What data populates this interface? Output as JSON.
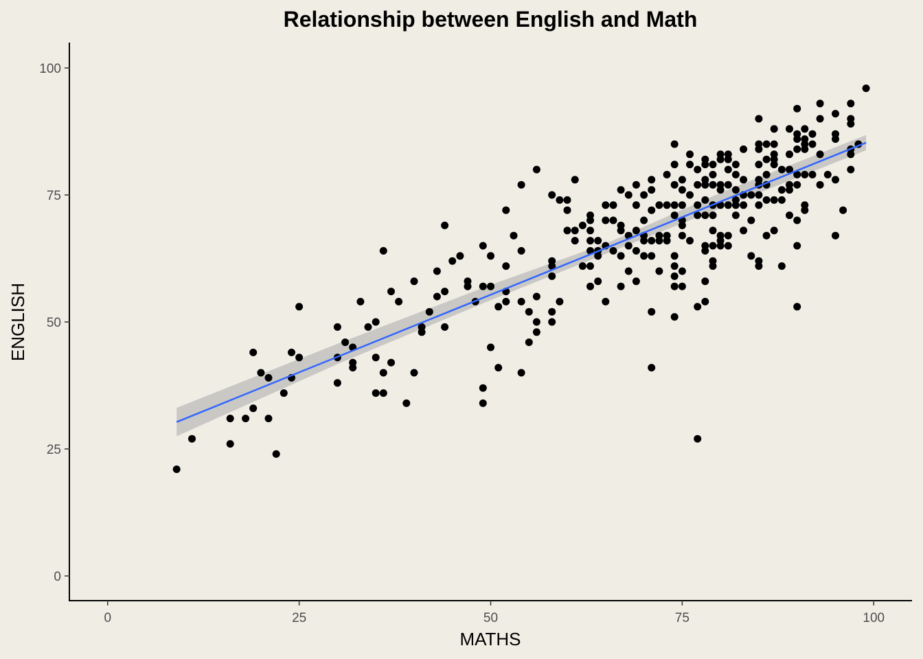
{
  "chart_data": {
    "type": "scatter",
    "title": "Relationship between English and Math",
    "xlabel": "MATHS",
    "ylabel": "ENGLISH",
    "xlim": [
      -5,
      105
    ],
    "ylim": [
      -5,
      105
    ],
    "x_ticks": [
      0,
      25,
      50,
      75,
      100
    ],
    "y_ticks": [
      0,
      25,
      50,
      75,
      100
    ],
    "x_tick_labels": [
      "0",
      "25",
      "50",
      "75",
      "100"
    ],
    "y_tick_labels": [
      "0",
      "25",
      "50",
      "75",
      "100"
    ],
    "grid": false,
    "colors": {
      "background": "#f0ede5",
      "points": "#000000",
      "fit_line": "#3366ff",
      "confidence_band": "#a9a9a9",
      "axis": "#000000"
    },
    "fit_line": {
      "x": [
        9,
        99
      ],
      "y": [
        30.3,
        85.3
      ]
    },
    "confidence_band": {
      "x": [
        9,
        30,
        50,
        65,
        80,
        99
      ],
      "lower": [
        27.5,
        41.7,
        54.3,
        63.4,
        72.4,
        83.8
      ],
      "upper": [
        33.1,
        45.7,
        57.3,
        65.4,
        75.4,
        86.8
      ]
    },
    "points": [
      [
        9,
        21
      ],
      [
        11,
        27
      ],
      [
        16,
        26
      ],
      [
        16,
        31
      ],
      [
        18,
        31
      ],
      [
        19,
        33
      ],
      [
        19,
        44
      ],
      [
        20,
        40
      ],
      [
        21,
        39
      ],
      [
        21,
        31
      ],
      [
        22,
        24
      ],
      [
        23,
        36
      ],
      [
        24,
        44
      ],
      [
        24,
        39
      ],
      [
        25,
        53
      ],
      [
        25,
        43
      ],
      [
        30,
        49
      ],
      [
        30,
        43
      ],
      [
        30,
        38
      ],
      [
        31,
        46
      ],
      [
        32,
        45
      ],
      [
        32,
        42
      ],
      [
        32,
        41
      ],
      [
        33,
        54
      ],
      [
        34,
        49
      ],
      [
        35,
        50
      ],
      [
        35,
        43
      ],
      [
        35,
        36
      ],
      [
        36,
        40
      ],
      [
        36,
        64
      ],
      [
        36,
        36
      ],
      [
        37,
        56
      ],
      [
        37,
        42
      ],
      [
        38,
        54
      ],
      [
        39,
        34
      ],
      [
        40,
        58
      ],
      [
        40,
        40
      ],
      [
        41,
        49
      ],
      [
        41,
        48
      ],
      [
        42,
        52
      ],
      [
        43,
        60
      ],
      [
        43,
        55
      ],
      [
        44,
        69
      ],
      [
        44,
        56
      ],
      [
        44,
        49
      ],
      [
        45,
        62
      ],
      [
        46,
        63
      ],
      [
        47,
        58
      ],
      [
        47,
        57
      ],
      [
        48,
        54
      ],
      [
        49,
        65
      ],
      [
        49,
        57
      ],
      [
        49,
        37
      ],
      [
        49,
        34
      ],
      [
        50,
        63
      ],
      [
        50,
        57
      ],
      [
        50,
        45
      ],
      [
        51,
        53
      ],
      [
        51,
        41
      ],
      [
        52,
        72
      ],
      [
        52,
        61
      ],
      [
        52,
        56
      ],
      [
        52,
        54
      ],
      [
        53,
        67
      ],
      [
        54,
        77
      ],
      [
        54,
        64
      ],
      [
        54,
        54
      ],
      [
        54,
        40
      ],
      [
        55,
        52
      ],
      [
        55,
        46
      ],
      [
        56,
        80
      ],
      [
        56,
        55
      ],
      [
        56,
        50
      ],
      [
        56,
        48
      ],
      [
        58,
        75
      ],
      [
        58,
        62
      ],
      [
        58,
        61
      ],
      [
        58,
        59
      ],
      [
        58,
        52
      ],
      [
        58,
        50
      ],
      [
        59,
        74
      ],
      [
        59,
        54
      ],
      [
        60,
        74
      ],
      [
        60,
        72
      ],
      [
        60,
        68
      ],
      [
        61,
        78
      ],
      [
        61,
        68
      ],
      [
        61,
        66
      ],
      [
        62,
        69
      ],
      [
        62,
        61
      ],
      [
        63,
        71
      ],
      [
        63,
        70
      ],
      [
        63,
        68
      ],
      [
        63,
        66
      ],
      [
        63,
        64
      ],
      [
        63,
        61
      ],
      [
        63,
        57
      ],
      [
        64,
        66
      ],
      [
        64,
        64
      ],
      [
        64,
        63
      ],
      [
        64,
        58
      ],
      [
        65,
        73
      ],
      [
        65,
        70
      ],
      [
        65,
        65
      ],
      [
        65,
        54
      ],
      [
        66,
        73
      ],
      [
        66,
        70
      ],
      [
        66,
        64
      ],
      [
        67,
        76
      ],
      [
        67,
        69
      ],
      [
        67,
        68
      ],
      [
        67,
        63
      ],
      [
        67,
        57
      ],
      [
        68,
        75
      ],
      [
        68,
        67
      ],
      [
        68,
        65
      ],
      [
        68,
        60
      ],
      [
        69,
        77
      ],
      [
        69,
        73
      ],
      [
        69,
        68
      ],
      [
        69,
        64
      ],
      [
        69,
        58
      ],
      [
        70,
        75
      ],
      [
        70,
        70
      ],
      [
        70,
        67
      ],
      [
        70,
        63
      ],
      [
        70,
        66
      ],
      [
        71,
        78
      ],
      [
        71,
        76
      ],
      [
        71,
        72
      ],
      [
        71,
        66
      ],
      [
        71,
        63
      ],
      [
        71,
        52
      ],
      [
        71,
        41
      ],
      [
        72,
        73
      ],
      [
        72,
        67
      ],
      [
        72,
        66
      ],
      [
        72,
        60
      ],
      [
        73,
        79
      ],
      [
        73,
        73
      ],
      [
        73,
        67
      ],
      [
        73,
        66
      ],
      [
        74,
        85
      ],
      [
        74,
        81
      ],
      [
        74,
        77
      ],
      [
        74,
        73
      ],
      [
        74,
        71
      ],
      [
        74,
        63
      ],
      [
        74,
        61
      ],
      [
        74,
        59
      ],
      [
        74,
        57
      ],
      [
        74,
        51
      ],
      [
        75,
        78
      ],
      [
        75,
        76
      ],
      [
        75,
        73
      ],
      [
        75,
        70
      ],
      [
        75,
        69
      ],
      [
        75,
        67
      ],
      [
        75,
        60
      ],
      [
        75,
        57
      ],
      [
        76,
        83
      ],
      [
        76,
        81
      ],
      [
        76,
        75
      ],
      [
        76,
        66
      ],
      [
        77,
        80
      ],
      [
        77,
        77
      ],
      [
        77,
        73
      ],
      [
        77,
        71
      ],
      [
        77,
        53
      ],
      [
        77,
        27
      ],
      [
        78,
        82
      ],
      [
        78,
        81
      ],
      [
        78,
        78
      ],
      [
        78,
        77
      ],
      [
        78,
        74
      ],
      [
        78,
        71
      ],
      [
        78,
        65
      ],
      [
        78,
        64
      ],
      [
        78,
        58
      ],
      [
        78,
        54
      ],
      [
        79,
        81
      ],
      [
        79,
        79
      ],
      [
        79,
        77
      ],
      [
        79,
        73
      ],
      [
        79,
        71
      ],
      [
        79,
        68
      ],
      [
        79,
        65
      ],
      [
        79,
        62
      ],
      [
        79,
        61
      ],
      [
        80,
        83
      ],
      [
        80,
        82
      ],
      [
        80,
        77
      ],
      [
        80,
        76
      ],
      [
        80,
        73
      ],
      [
        80,
        67
      ],
      [
        80,
        66
      ],
      [
        80,
        65
      ],
      [
        81,
        83
      ],
      [
        81,
        82
      ],
      [
        81,
        80
      ],
      [
        81,
        77
      ],
      [
        81,
        73
      ],
      [
        81,
        67
      ],
      [
        81,
        65
      ],
      [
        82,
        81
      ],
      [
        82,
        79
      ],
      [
        82,
        76
      ],
      [
        82,
        74
      ],
      [
        82,
        73
      ],
      [
        82,
        71
      ],
      [
        83,
        84
      ],
      [
        83,
        78
      ],
      [
        83,
        75
      ],
      [
        83,
        73
      ],
      [
        83,
        68
      ],
      [
        84,
        75
      ],
      [
        84,
        70
      ],
      [
        84,
        63
      ],
      [
        85,
        90
      ],
      [
        85,
        85
      ],
      [
        85,
        84
      ],
      [
        85,
        81
      ],
      [
        85,
        78
      ],
      [
        85,
        77
      ],
      [
        85,
        75
      ],
      [
        85,
        73
      ],
      [
        85,
        62
      ],
      [
        85,
        61
      ],
      [
        86,
        85
      ],
      [
        86,
        82
      ],
      [
        86,
        79
      ],
      [
        86,
        77
      ],
      [
        86,
        74
      ],
      [
        86,
        67
      ],
      [
        87,
        88
      ],
      [
        87,
        85
      ],
      [
        87,
        83
      ],
      [
        87,
        82
      ],
      [
        87,
        81
      ],
      [
        87,
        74
      ],
      [
        87,
        68
      ],
      [
        88,
        80
      ],
      [
        88,
        76
      ],
      [
        88,
        74
      ],
      [
        88,
        61
      ],
      [
        89,
        88
      ],
      [
        89,
        83
      ],
      [
        89,
        80
      ],
      [
        89,
        77
      ],
      [
        89,
        76
      ],
      [
        89,
        71
      ],
      [
        90,
        92
      ],
      [
        90,
        87
      ],
      [
        90,
        86
      ],
      [
        90,
        84
      ],
      [
        90,
        79
      ],
      [
        90,
        77
      ],
      [
        90,
        70
      ],
      [
        90,
        65
      ],
      [
        90,
        53
      ],
      [
        91,
        88
      ],
      [
        91,
        86
      ],
      [
        91,
        85
      ],
      [
        91,
        84
      ],
      [
        91,
        79
      ],
      [
        91,
        73
      ],
      [
        91,
        72
      ],
      [
        92,
        87
      ],
      [
        92,
        85
      ],
      [
        92,
        79
      ],
      [
        93,
        93
      ],
      [
        93,
        90
      ],
      [
        93,
        83
      ],
      [
        93,
        77
      ],
      [
        94,
        79
      ],
      [
        95,
        91
      ],
      [
        95,
        87
      ],
      [
        95,
        86
      ],
      [
        95,
        78
      ],
      [
        95,
        67
      ],
      [
        96,
        72
      ],
      [
        97,
        93
      ],
      [
        97,
        90
      ],
      [
        97,
        89
      ],
      [
        97,
        84
      ],
      [
        97,
        83
      ],
      [
        97,
        80
      ],
      [
        98,
        85
      ],
      [
        99,
        96
      ]
    ]
  }
}
